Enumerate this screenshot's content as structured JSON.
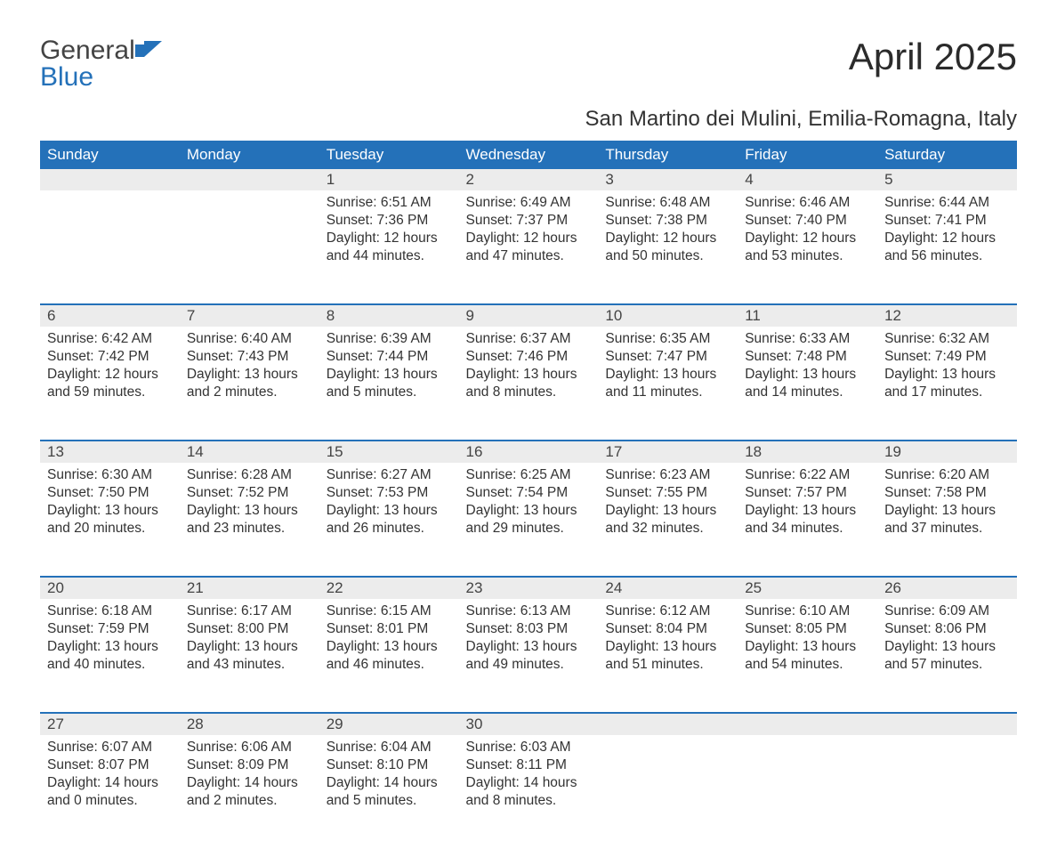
{
  "brand": {
    "name_part1": "General",
    "name_part2": "Blue",
    "accent_color": "#2471b9"
  },
  "title": "April 2025",
  "subtitle": "San Martino dei Mulini, Emilia-Romagna, Italy",
  "colors": {
    "header_bg": "#2471b9",
    "header_fg": "#ffffff",
    "daynum_bg": "#ececec",
    "row_divider": "#2471b9",
    "text": "#333333",
    "background": "#ffffff"
  },
  "typography": {
    "title_fontsize": 42,
    "subtitle_fontsize": 24,
    "header_fontsize": 17,
    "body_fontsize": 15.5
  },
  "weekdays": [
    "Sunday",
    "Monday",
    "Tuesday",
    "Wednesday",
    "Thursday",
    "Friday",
    "Saturday"
  ],
  "weeks": [
    [
      null,
      null,
      {
        "n": "1",
        "sunrise": "6:51 AM",
        "sunset": "7:36 PM",
        "daylight": "12 hours and 44 minutes."
      },
      {
        "n": "2",
        "sunrise": "6:49 AM",
        "sunset": "7:37 PM",
        "daylight": "12 hours and 47 minutes."
      },
      {
        "n": "3",
        "sunrise": "6:48 AM",
        "sunset": "7:38 PM",
        "daylight": "12 hours and 50 minutes."
      },
      {
        "n": "4",
        "sunrise": "6:46 AM",
        "sunset": "7:40 PM",
        "daylight": "12 hours and 53 minutes."
      },
      {
        "n": "5",
        "sunrise": "6:44 AM",
        "sunset": "7:41 PM",
        "daylight": "12 hours and 56 minutes."
      }
    ],
    [
      {
        "n": "6",
        "sunrise": "6:42 AM",
        "sunset": "7:42 PM",
        "daylight": "12 hours and 59 minutes."
      },
      {
        "n": "7",
        "sunrise": "6:40 AM",
        "sunset": "7:43 PM",
        "daylight": "13 hours and 2 minutes."
      },
      {
        "n": "8",
        "sunrise": "6:39 AM",
        "sunset": "7:44 PM",
        "daylight": "13 hours and 5 minutes."
      },
      {
        "n": "9",
        "sunrise": "6:37 AM",
        "sunset": "7:46 PM",
        "daylight": "13 hours and 8 minutes."
      },
      {
        "n": "10",
        "sunrise": "6:35 AM",
        "sunset": "7:47 PM",
        "daylight": "13 hours and 11 minutes."
      },
      {
        "n": "11",
        "sunrise": "6:33 AM",
        "sunset": "7:48 PM",
        "daylight": "13 hours and 14 minutes."
      },
      {
        "n": "12",
        "sunrise": "6:32 AM",
        "sunset": "7:49 PM",
        "daylight": "13 hours and 17 minutes."
      }
    ],
    [
      {
        "n": "13",
        "sunrise": "6:30 AM",
        "sunset": "7:50 PM",
        "daylight": "13 hours and 20 minutes."
      },
      {
        "n": "14",
        "sunrise": "6:28 AM",
        "sunset": "7:52 PM",
        "daylight": "13 hours and 23 minutes."
      },
      {
        "n": "15",
        "sunrise": "6:27 AM",
        "sunset": "7:53 PM",
        "daylight": "13 hours and 26 minutes."
      },
      {
        "n": "16",
        "sunrise": "6:25 AM",
        "sunset": "7:54 PM",
        "daylight": "13 hours and 29 minutes."
      },
      {
        "n": "17",
        "sunrise": "6:23 AM",
        "sunset": "7:55 PM",
        "daylight": "13 hours and 32 minutes."
      },
      {
        "n": "18",
        "sunrise": "6:22 AM",
        "sunset": "7:57 PM",
        "daylight": "13 hours and 34 minutes."
      },
      {
        "n": "19",
        "sunrise": "6:20 AM",
        "sunset": "7:58 PM",
        "daylight": "13 hours and 37 minutes."
      }
    ],
    [
      {
        "n": "20",
        "sunrise": "6:18 AM",
        "sunset": "7:59 PM",
        "daylight": "13 hours and 40 minutes."
      },
      {
        "n": "21",
        "sunrise": "6:17 AM",
        "sunset": "8:00 PM",
        "daylight": "13 hours and 43 minutes."
      },
      {
        "n": "22",
        "sunrise": "6:15 AM",
        "sunset": "8:01 PM",
        "daylight": "13 hours and 46 minutes."
      },
      {
        "n": "23",
        "sunrise": "6:13 AM",
        "sunset": "8:03 PM",
        "daylight": "13 hours and 49 minutes."
      },
      {
        "n": "24",
        "sunrise": "6:12 AM",
        "sunset": "8:04 PM",
        "daylight": "13 hours and 51 minutes."
      },
      {
        "n": "25",
        "sunrise": "6:10 AM",
        "sunset": "8:05 PM",
        "daylight": "13 hours and 54 minutes."
      },
      {
        "n": "26",
        "sunrise": "6:09 AM",
        "sunset": "8:06 PM",
        "daylight": "13 hours and 57 minutes."
      }
    ],
    [
      {
        "n": "27",
        "sunrise": "6:07 AM",
        "sunset": "8:07 PM",
        "daylight": "14 hours and 0 minutes."
      },
      {
        "n": "28",
        "sunrise": "6:06 AM",
        "sunset": "8:09 PM",
        "daylight": "14 hours and 2 minutes."
      },
      {
        "n": "29",
        "sunrise": "6:04 AM",
        "sunset": "8:10 PM",
        "daylight": "14 hours and 5 minutes."
      },
      {
        "n": "30",
        "sunrise": "6:03 AM",
        "sunset": "8:11 PM",
        "daylight": "14 hours and 8 minutes."
      },
      null,
      null,
      null
    ]
  ],
  "labels": {
    "sunrise": "Sunrise: ",
    "sunset": "Sunset: ",
    "daylight": "Daylight: "
  }
}
